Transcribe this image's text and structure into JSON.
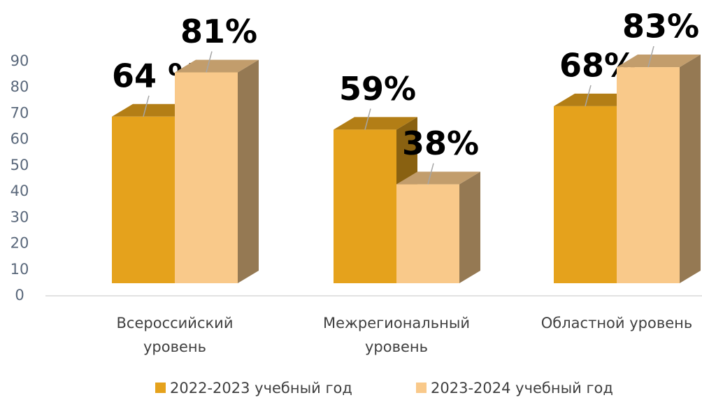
{
  "chart_data": {
    "type": "bar3d",
    "categories": [
      "Всероссийский уровень",
      "Межрегиональный уровень",
      "Областной уровень"
    ],
    "series": [
      {
        "name": "2022-2023 учебный год",
        "color": "#e5a21c",
        "values": [
          64,
          59,
          68
        ],
        "value_labels": [
          "64 %",
          "59%",
          "68%"
        ]
      },
      {
        "name": "2023-2024 учебный год",
        "color": "#f9c98a",
        "values": [
          81,
          38,
          83
        ],
        "value_labels": [
          "81%",
          "38%",
          "83%"
        ]
      }
    ],
    "ylim": [
      0,
      90
    ],
    "yticks": [
      0,
      10,
      20,
      30,
      40,
      50,
      60,
      70,
      80,
      90
    ],
    "grid": false,
    "legend": "bottom"
  }
}
